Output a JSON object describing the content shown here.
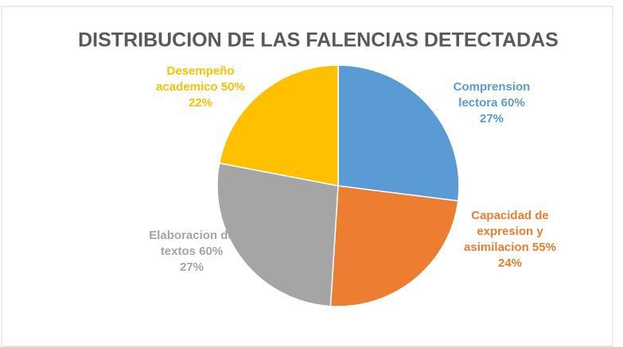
{
  "chart_data": {
    "type": "pie",
    "title": "DISTRIBUCION DE LAS FALENCIAS DETECTADAS",
    "categories": [
      "Comprension lectora  60%",
      "Capacidad de expresion y asimilacion 55%",
      "Elaboracion de textos 60%",
      "Desempeño academico 50%"
    ],
    "values": [
      27,
      24,
      27,
      22
    ],
    "value_labels": [
      "27%",
      "24%",
      "27%",
      "22%"
    ],
    "colors": [
      "#5b9bd5",
      "#ed7d31",
      "#a5a5a5",
      "#ffc000"
    ]
  }
}
